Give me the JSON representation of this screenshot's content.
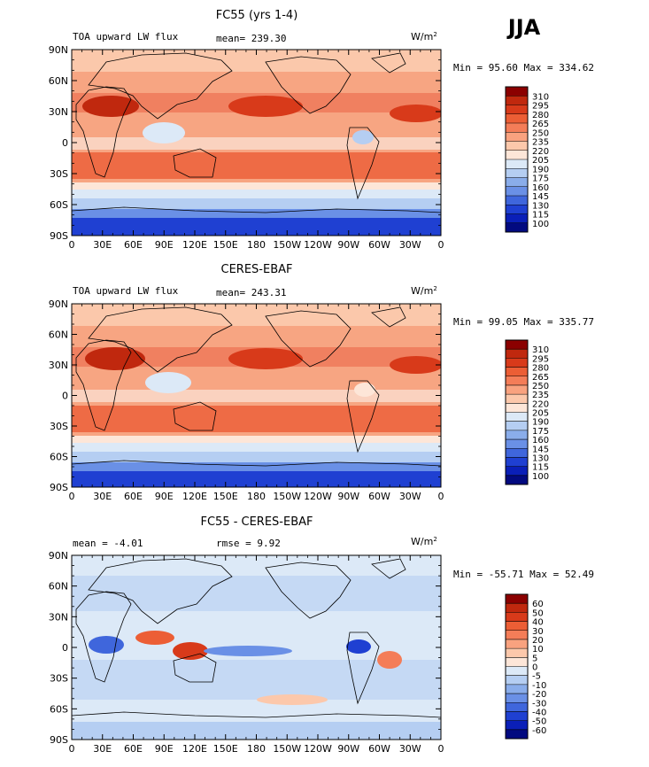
{
  "season": "JJA",
  "chart_data": [
    {
      "type": "heatmap",
      "title": "FC55 (yrs 1-4)",
      "variable": "TOA upward LW flux",
      "mean_label": "mean= 239.30",
      "units": "W/m",
      "units_exp": "2",
      "minmax_label": "Min =  95.60 Max = 334.62",
      "min": 95.6,
      "max": 334.62,
      "y_ticks": [
        "90N",
        "60N",
        "30N",
        "0",
        "30S",
        "60S",
        "90S"
      ],
      "x_ticks": [
        "0",
        "30E",
        "60E",
        "90E",
        "120E",
        "150E",
        "180",
        "150W",
        "120W",
        "90W",
        "60W",
        "30W",
        "0"
      ],
      "xlim": [
        0,
        360
      ],
      "ylim": [
        -90,
        90
      ],
      "colorbar_levels": [
        "310",
        "295",
        "280",
        "265",
        "250",
        "235",
        "220",
        "205",
        "190",
        "175",
        "160",
        "145",
        "130",
        "115",
        "100"
      ],
      "colorbar_colors": [
        "#8b0000",
        "#c0280e",
        "#d83a1a",
        "#ec5e35",
        "#f47d58",
        "#f9a27f",
        "#fcc8ab",
        "#fde6d8",
        "#dce9f7",
        "#b5cef2",
        "#8aadea",
        "#6a90e6",
        "#3f66dc",
        "#1f40d2",
        "#0a1fb8",
        "#020a80"
      ],
      "annotations": []
    },
    {
      "type": "heatmap",
      "title": "CERES-EBAF",
      "variable": "TOA upward LW flux",
      "mean_label": "mean= 243.31",
      "units": "W/m",
      "units_exp": "2",
      "minmax_label": "Min =  99.05 Max = 335.77",
      "min": 99.05,
      "max": 335.77,
      "y_ticks": [
        "90N",
        "60N",
        "30N",
        "0",
        "30S",
        "60S",
        "90S"
      ],
      "x_ticks": [
        "0",
        "30E",
        "60E",
        "90E",
        "120E",
        "150E",
        "180",
        "150W",
        "120W",
        "90W",
        "60W",
        "30W",
        "0"
      ],
      "xlim": [
        0,
        360
      ],
      "ylim": [
        -90,
        90
      ],
      "colorbar_levels": [
        "310",
        "295",
        "280",
        "265",
        "250",
        "235",
        "220",
        "205",
        "190",
        "175",
        "160",
        "145",
        "130",
        "115",
        "100"
      ],
      "colorbar_colors": [
        "#8b0000",
        "#c0280e",
        "#d83a1a",
        "#ec5e35",
        "#f47d58",
        "#f9a27f",
        "#fcc8ab",
        "#fde6d8",
        "#dce9f7",
        "#b5cef2",
        "#8aadea",
        "#6a90e6",
        "#3f66dc",
        "#1f40d2",
        "#0a1fb8",
        "#020a80"
      ],
      "annotations": []
    },
    {
      "type": "heatmap",
      "title": "FC55 - CERES-EBAF",
      "variable": "",
      "mean_label": "mean =   -4.01",
      "rmse_label": "rmse =    9.92",
      "units": "W/m",
      "units_exp": "2",
      "minmax_label": "Min = -55.71 Max =  52.49",
      "min": -55.71,
      "max": 52.49,
      "y_ticks": [
        "90N",
        "60N",
        "30N",
        "0",
        "30S",
        "60S",
        "90S"
      ],
      "x_ticks": [
        "0",
        "30E",
        "60E",
        "90E",
        "120E",
        "150E",
        "180",
        "150W",
        "120W",
        "90W",
        "60W",
        "30W",
        "0"
      ],
      "xlim": [
        0,
        360
      ],
      "ylim": [
        -90,
        90
      ],
      "colorbar_levels": [
        "60",
        "50",
        "40",
        "30",
        "20",
        "10",
        "5",
        "0",
        "-5",
        "-10",
        "-20",
        "-30",
        "-40",
        "-50",
        "-60"
      ],
      "colorbar_colors": [
        "#8b0000",
        "#c0280e",
        "#d83a1a",
        "#ec5e35",
        "#f47d58",
        "#f9a27f",
        "#fcc8ab",
        "#fde6d8",
        "#dce9f7",
        "#b5cef2",
        "#8aadea",
        "#6a90e6",
        "#3f66dc",
        "#1f40d2",
        "#0a1fb8",
        "#020a80"
      ],
      "annotations": []
    }
  ]
}
